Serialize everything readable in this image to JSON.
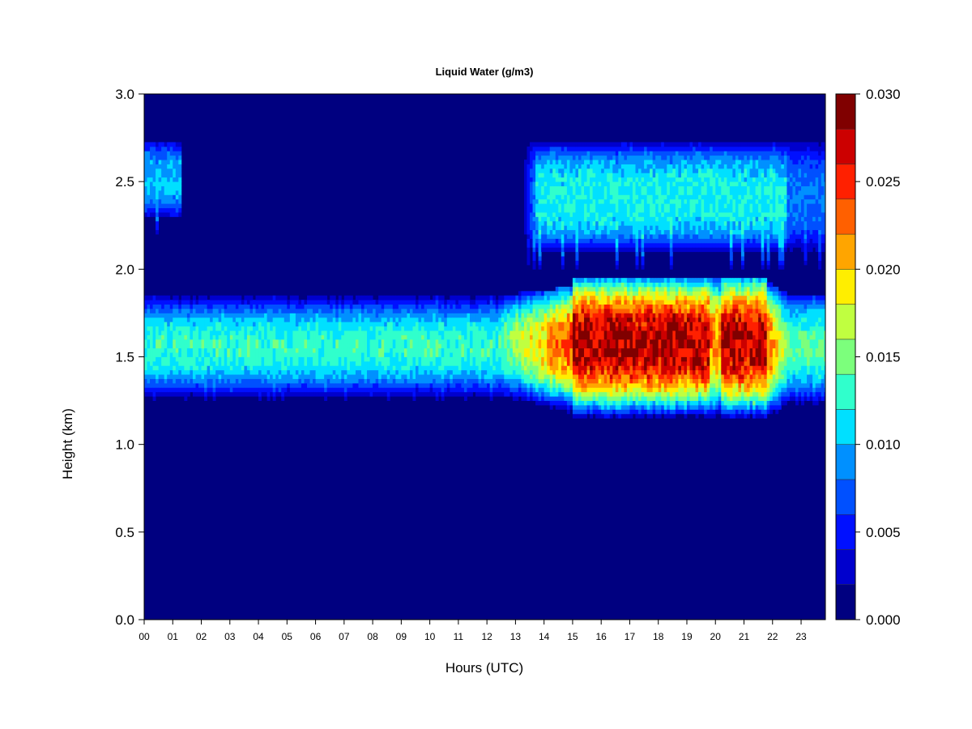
{
  "chart_data": {
    "type": "heatmap",
    "title": "Liquid Water (g/m3)",
    "xlabel": "Hours (UTC)",
    "ylabel": "Height (km)",
    "xlim": [
      0,
      23.85
    ],
    "ylim": [
      0.0,
      3.0
    ],
    "x_ticks": [
      "00",
      "01",
      "02",
      "03",
      "04",
      "05",
      "06",
      "07",
      "08",
      "09",
      "10",
      "11",
      "12",
      "13",
      "14",
      "15",
      "16",
      "17",
      "18",
      "19",
      "20",
      "21",
      "22",
      "23"
    ],
    "y_ticks": [
      "0.0",
      "0.5",
      "1.0",
      "1.5",
      "2.0",
      "2.5",
      "3.0"
    ],
    "colorbar": {
      "range": [
        0.0,
        0.03
      ],
      "tick_labels": [
        "0.000",
        "0.005",
        "0.010",
        "0.015",
        "0.020",
        "0.025",
        "0.030"
      ],
      "levels": [
        0.0,
        0.002,
        0.004,
        0.006,
        0.008,
        0.01,
        0.012,
        0.014,
        0.016,
        0.018,
        0.02,
        0.022,
        0.024,
        0.026,
        0.028,
        0.03
      ],
      "colors": [
        "#000080",
        "#0000CD",
        "#0010FF",
        "#0050FF",
        "#0090FF",
        "#00E0FF",
        "#30FFCC",
        "#7CFF7C",
        "#C0FF40",
        "#FFEE00",
        "#FFA500",
        "#FF6000",
        "#FF2000",
        "#CC0000",
        "#800000"
      ]
    },
    "layers": [
      {
        "hours": [
          0,
          12.5
        ],
        "base_km": 1.23,
        "top_km": 1.85,
        "peak_g_m3": 0.013
      },
      {
        "hours": [
          12.5,
          15.0
        ],
        "base_km": 1.1,
        "top_km": 1.9,
        "peak_g_m3": 0.023
      },
      {
        "hours": [
          15.0,
          21.8
        ],
        "base_km": 1.08,
        "top_km": 1.95,
        "peak_g_m3": 0.028
      },
      {
        "hours": [
          21.8,
          23.85
        ],
        "base_km": 1.15,
        "top_km": 1.85,
        "peak_g_m3": 0.015
      },
      {
        "hours": [
          13.2,
          22.5
        ],
        "base_km": 2.05,
        "top_km": 2.72,
        "peak_g_m3": 0.012
      },
      {
        "hours": [
          0,
          1.3
        ],
        "base_km": 2.25,
        "top_km": 2.72,
        "peak_g_m3": 0.01
      },
      {
        "hours": [
          22.5,
          23.85
        ],
        "base_km": 2.05,
        "top_km": 2.72,
        "peak_g_m3": 0.008
      }
    ]
  }
}
